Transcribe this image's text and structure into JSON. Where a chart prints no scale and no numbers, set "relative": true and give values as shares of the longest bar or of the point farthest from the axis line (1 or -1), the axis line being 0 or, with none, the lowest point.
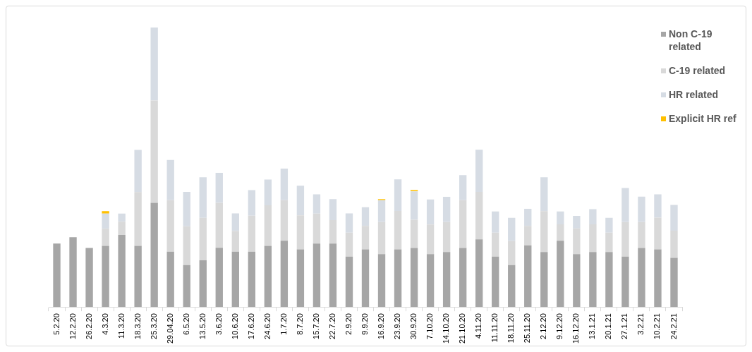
{
  "chart_data": {
    "type": "bar",
    "stacked": true,
    "relative": true,
    "legend": "right",
    "grid": false,
    "categories": [
      "5.2.20",
      "12.2.20",
      "26.2.20",
      "4.3.20",
      "11.3.20",
      "18.3.20",
      "25.3.20",
      "29.04.20",
      "6.5.20",
      "13.5.20",
      "3.6.20",
      "10.6.20",
      "17.6.20",
      "24.6.20",
      "1.7.20",
      "8.7.20",
      "15.7.20",
      "22.7.20",
      "2.9.20",
      "9.9.20",
      "16.9.20",
      "23.9.20",
      "30.9.20",
      "7.10.20",
      "14.10.20",
      "21.10.20",
      "4.11.20",
      "11.11.20",
      "18.11.20",
      "25.11.20",
      "2.12.20",
      "9.12.20",
      "16.12.20",
      "13.1.21",
      "20.1.21",
      "27.1.21",
      "3.2.21",
      "10.2.21",
      "24.2.21"
    ],
    "series": [
      {
        "name": "Non C-19 related",
        "color": "#a6a6a6",
        "values": [
          0.227,
          0.25,
          0.211,
          0.219,
          0.258,
          0.219,
          0.373,
          0.198,
          0.15,
          0.167,
          0.212,
          0.198,
          0.198,
          0.219,
          0.237,
          0.206,
          0.227,
          0.227,
          0.18,
          0.206,
          0.189,
          0.206,
          0.211,
          0.189,
          0.197,
          0.211,
          0.242,
          0.18,
          0.15,
          0.22,
          0.197,
          0.237,
          0.189,
          0.197,
          0.197,
          0.18,
          0.211,
          0.206,
          0.176
        ]
      },
      {
        "name": "C-19 related",
        "color": "#d9d9d9",
        "values": [
          0,
          0,
          0,
          0.061,
          0.047,
          0.192,
          0.366,
          0.184,
          0.139,
          0.152,
          0.161,
          0.074,
          0.129,
          0.145,
          0.145,
          0.122,
          0.107,
          0.084,
          0.086,
          0.084,
          0.115,
          0.138,
          0.101,
          0.106,
          0.107,
          0.171,
          0.17,
          0.086,
          0.086,
          0.07,
          0.146,
          0.059,
          0.092,
          0.099,
          0.069,
          0.124,
          0.093,
          0.114,
          0.097
        ]
      },
      {
        "name": "HR related",
        "color": "#d6dce4",
        "values": [
          0,
          0,
          0,
          0.054,
          0.029,
          0.151,
          0.261,
          0.144,
          0.123,
          0.145,
          0.107,
          0.063,
          0.091,
          0.092,
          0.113,
          0.106,
          0.069,
          0.075,
          0.069,
          0.067,
          0.078,
          0.113,
          0.102,
          0.09,
          0.09,
          0.09,
          0.151,
          0.076,
          0.083,
          0.061,
          0.121,
          0.046,
          0.045,
          0.054,
          0.053,
          0.122,
          0.091,
          0.083,
          0.092
        ]
      },
      {
        "name": "Explicit HR ref",
        "color": "#ffc000",
        "values": [
          0,
          0,
          0,
          0.009,
          0,
          0,
          0,
          0,
          0,
          0,
          0,
          0,
          0,
          0,
          0,
          0,
          0,
          0,
          0,
          0,
          0.004,
          0,
          0.004,
          0,
          0,
          0,
          0,
          0,
          0,
          0,
          0,
          0,
          0,
          0,
          0,
          0,
          0,
          0,
          0
        ]
      }
    ]
  }
}
